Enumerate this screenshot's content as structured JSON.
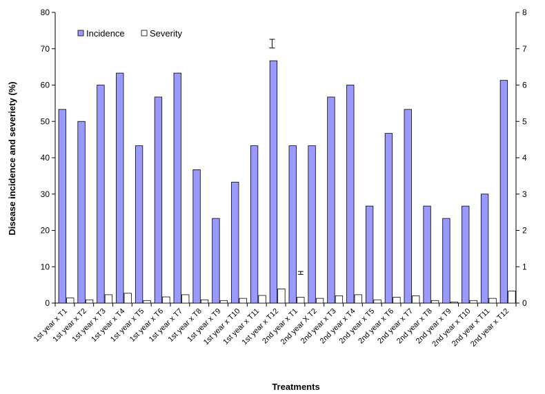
{
  "chart_data": {
    "type": "bar",
    "title": "",
    "xlabel": "Treatments",
    "ylabel": "Disease incidence and severiety (%)",
    "ylim": [
      0,
      80
    ],
    "y_ticks": [
      "0",
      "10",
      "20",
      "30",
      "40",
      "50",
      "60",
      "70",
      "80"
    ],
    "ylim_right": [
      0,
      8
    ],
    "y2_ticks": [
      "0",
      "1",
      "2",
      "3",
      "4",
      "5",
      "6",
      "7",
      "8"
    ],
    "grid": false,
    "legend_position": "top-left",
    "colors": {
      "incidence": "#9999ff",
      "severity": "#ffffff",
      "outline": "#000000"
    },
    "categories": [
      "1st year x T1",
      "1st year x T2",
      "1st year x T3",
      "1st year x T4",
      "1st year x T5",
      "1st year x T6",
      "1st year x T7",
      "1st year x T8",
      "1st year x T9",
      "1st year x T10",
      "1st year x T11",
      "1st year x T12",
      "2nd year x T1",
      "2nd year X T2",
      "2nd year x T3",
      "2nd year x T4",
      "2nd year x T5",
      "2nd year x T6",
      "2nd year x T7",
      "2nd year x T8",
      "2nd year x T9",
      "2nd year x T10",
      "2nd year x T11",
      "2nd year x T12"
    ],
    "series": [
      {
        "name": "Incidence",
        "axis": "left",
        "values": [
          53.3,
          50,
          60,
          63.3,
          43.3,
          56.7,
          63.3,
          36.7,
          23.3,
          33.3,
          43.3,
          66.7,
          43.3,
          43.3,
          56.7,
          60,
          26.7,
          46.7,
          53.3,
          26.7,
          23.3,
          26.7,
          30,
          61.3
        ]
      },
      {
        "name": "Severity",
        "axis": "right",
        "values": [
          0.14,
          0.09,
          0.23,
          0.27,
          0.07,
          0.17,
          0.23,
          0.09,
          0.07,
          0.13,
          0.21,
          0.39,
          0.16,
          0.13,
          0.2,
          0.23,
          0.09,
          0.16,
          0.2,
          0.07,
          0.03,
          0.07,
          0.13,
          0.33
        ]
      }
    ],
    "error_bars": [
      {
        "series": "Incidence",
        "x": 71.4,
        "low": 70.2,
        "high": 72.6
      },
      {
        "series": "Severity",
        "x": 8.3,
        "low": 7.9,
        "high": 8.7
      }
    ]
  }
}
